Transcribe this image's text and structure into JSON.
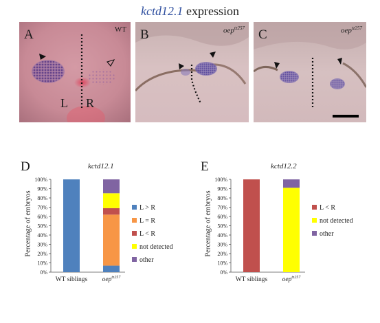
{
  "figure": {
    "title_gene": "kctd12.1",
    "title_rest": " expression",
    "panels": [
      {
        "letter": "A",
        "tag": "WT",
        "left_label": "L",
        "right_label": "R"
      },
      {
        "letter": "B",
        "tag_base": "oep",
        "tag_sup": "tz257"
      },
      {
        "letter": "C",
        "tag_base": "oep",
        "tag_sup": "tz257"
      }
    ],
    "colors": {
      "blue": "#4f81bd",
      "orange": "#f79646",
      "red": "#c0504d",
      "yellow": "#ffff00",
      "purple": "#8064a2"
    }
  },
  "chart_data": [
    {
      "letter": "D",
      "type": "bar",
      "stacked": true,
      "title": "kctd12.1",
      "ylabel": "Percentage of embryos",
      "ylim": [
        0,
        100
      ],
      "yticks": [
        "0%",
        "10%",
        "20%",
        "30%",
        "40%",
        "50%",
        "60%",
        "70%",
        "80%",
        "90%",
        "100%"
      ],
      "categories": [
        {
          "base": "WT siblings",
          "sup": ""
        },
        {
          "base": "oep",
          "sup": "tz257"
        }
      ],
      "series": [
        {
          "name": "L > R",
          "color": "#4f81bd",
          "values": [
            100,
            7
          ]
        },
        {
          "name": "L = R",
          "color": "#f79646",
          "values": [
            0,
            55
          ]
        },
        {
          "name": "L < R",
          "color": "#c0504d",
          "values": [
            0,
            7
          ]
        },
        {
          "name": "not detected",
          "color": "#ffff00",
          "values": [
            0,
            16
          ]
        },
        {
          "name": "other",
          "color": "#8064a2",
          "values": [
            0,
            15
          ]
        }
      ],
      "legend_position": "right"
    },
    {
      "letter": "E",
      "type": "bar",
      "stacked": true,
      "title": "kctd12.2",
      "ylabel": "Percentage of embryos",
      "ylim": [
        0,
        100
      ],
      "yticks": [
        "0%",
        "10%",
        "20%",
        "30%",
        "40%",
        "50%",
        "60%",
        "70%",
        "80%",
        "90%",
        "100%"
      ],
      "categories": [
        {
          "base": "WT siblings",
          "sup": ""
        },
        {
          "base": "oep",
          "sup": "tz257"
        }
      ],
      "series": [
        {
          "name": "L < R",
          "color": "#c0504d",
          "values": [
            100,
            0
          ]
        },
        {
          "name": "not detected",
          "color": "#ffff00",
          "values": [
            0,
            91
          ]
        },
        {
          "name": "other",
          "color": "#8064a2",
          "values": [
            0,
            9
          ]
        }
      ],
      "legend_position": "right"
    }
  ]
}
